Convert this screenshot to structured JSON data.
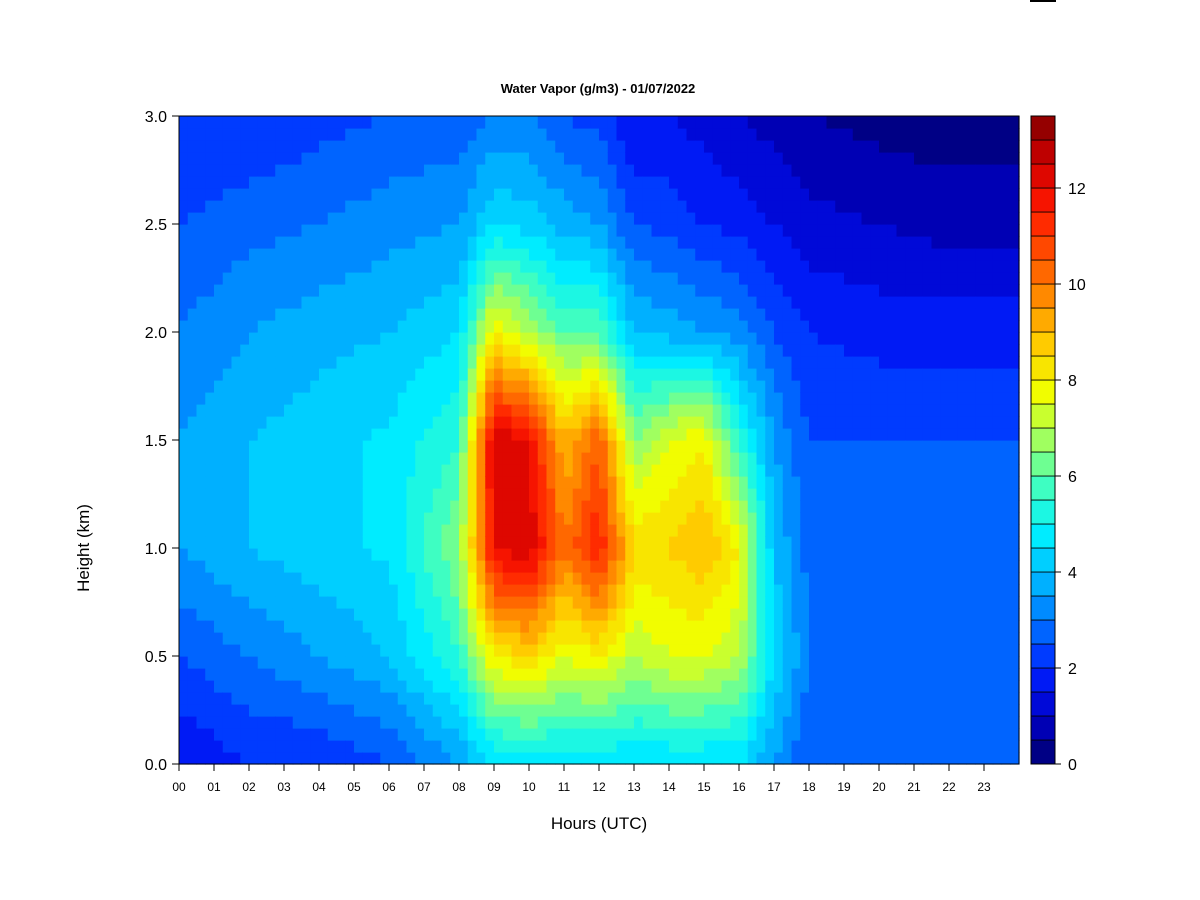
{
  "chart_data": {
    "type": "heatmap",
    "title": "Water Vapor (g/m3) - 01/07/2022",
    "xlabel": "Hours (UTC)",
    "ylabel": "Height (km)",
    "x_tick_labels": [
      "00",
      "01",
      "02",
      "03",
      "04",
      "05",
      "06",
      "07",
      "08",
      "09",
      "10",
      "11",
      "12",
      "13",
      "14",
      "15",
      "16",
      "17",
      "18",
      "19",
      "20",
      "21",
      "22",
      "23"
    ],
    "y_tick_labels": [
      "0.0",
      "0.5",
      "1.0",
      "1.5",
      "2.0",
      "2.5",
      "3.0"
    ],
    "y_ticks": [
      0.0,
      0.5,
      1.0,
      1.5,
      2.0,
      2.5,
      3.0
    ],
    "xlim": [
      0,
      24
    ],
    "ylim": [
      0,
      3.0
    ],
    "colorbar": {
      "range": [
        0,
        13.5
      ],
      "levels": 27,
      "tick_labels": [
        "0",
        "2",
        "4",
        "6",
        "8",
        "10",
        "12"
      ],
      "ticks": [
        0,
        2,
        4,
        6,
        8,
        10,
        12
      ]
    },
    "color_stops": [
      "#00006e",
      "#0000c8",
      "#0020ff",
      "#0070ff",
      "#00b8ff",
      "#00f0ff",
      "#40ffc0",
      "#a0ff60",
      "#f0ff00",
      "#ffd000",
      "#ff9000",
      "#ff5000",
      "#ff1800",
      "#d00000",
      "#800000"
    ],
    "grid": false,
    "series": [
      {
        "hour": 0,
        "values": [
          1.5,
          2.5,
          3.5,
          3.5,
          3.0,
          2.5,
          2.0
        ]
      },
      {
        "hour": 2,
        "values": [
          2.0,
          3.0,
          4.0,
          4.0,
          3.5,
          2.8,
          2.0
        ]
      },
      {
        "hour": 4,
        "values": [
          2.0,
          3.5,
          4.3,
          4.3,
          3.8,
          3.0,
          2.3
        ]
      },
      {
        "hour": 6,
        "values": [
          2.5,
          4.0,
          4.6,
          4.6,
          4.0,
          3.3,
          2.5
        ]
      },
      {
        "hour": 8,
        "values": [
          3.5,
          5.5,
          6.5,
          5.5,
          4.5,
          3.5,
          2.7
        ]
      },
      {
        "hour": 9,
        "values": [
          4.5,
          8.0,
          12.0,
          12.5,
          8.0,
          4.5,
          3.0
        ]
      },
      {
        "hour": 10,
        "values": [
          4.5,
          8.5,
          12.5,
          12.0,
          7.0,
          4.3,
          3.0
        ]
      },
      {
        "hour": 11,
        "values": [
          4.5,
          7.5,
          10.0,
          9.0,
          6.0,
          3.8,
          2.5
        ]
      },
      {
        "hour": 12,
        "values": [
          4.5,
          8.0,
          11.5,
          10.5,
          6.0,
          3.5,
          2.3
        ]
      },
      {
        "hour": 13,
        "values": [
          4.5,
          7.0,
          8.5,
          6.5,
          4.0,
          2.5,
          1.5
        ]
      },
      {
        "hour": 14,
        "values": [
          4.5,
          7.5,
          8.5,
          7.5,
          3.8,
          2.3,
          1.5
        ]
      },
      {
        "hour": 15,
        "values": [
          4.5,
          7.5,
          9.0,
          8.0,
          3.5,
          2.0,
          1.3
        ]
      },
      {
        "hour": 16,
        "values": [
          4.5,
          7.0,
          8.0,
          5.5,
          3.3,
          1.8,
          1.0
        ]
      },
      {
        "hour": 17,
        "values": [
          3.5,
          4.5,
          4.0,
          3.5,
          2.5,
          1.5,
          0.8
        ]
      },
      {
        "hour": 18,
        "values": [
          2.5,
          3.0,
          2.8,
          2.5,
          2.0,
          1.2,
          0.5
        ]
      },
      {
        "hour": 20,
        "values": [
          2.5,
          3.0,
          2.8,
          2.5,
          1.8,
          1.0,
          0.3
        ]
      },
      {
        "hour": 22,
        "values": [
          2.5,
          3.0,
          2.8,
          2.5,
          1.8,
          0.8,
          0.2
        ]
      },
      {
        "hour": 24,
        "values": [
          2.5,
          3.0,
          2.8,
          2.5,
          1.8,
          0.8,
          0.2
        ]
      }
    ]
  }
}
